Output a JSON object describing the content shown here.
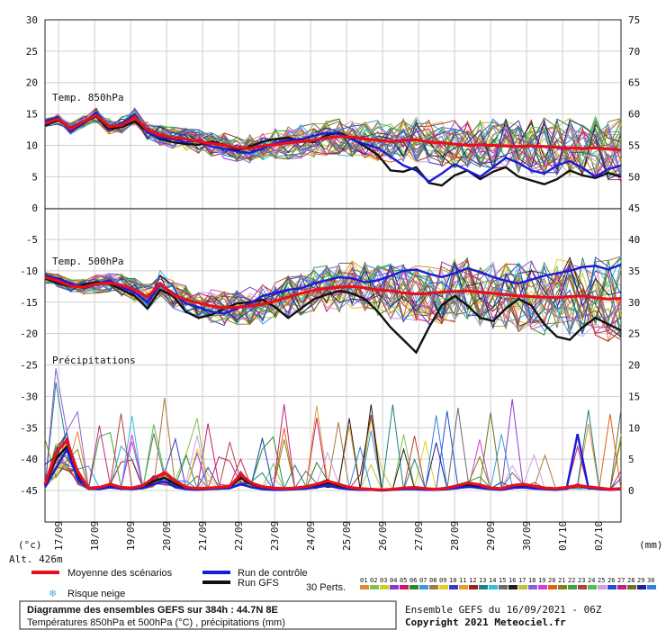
{
  "chart_data": {
    "type": "line",
    "left_axis_ticks": [
      "30",
      "25",
      "20",
      "15",
      "10",
      "5",
      "0",
      "-5",
      "-10",
      "-15",
      "-20",
      "-25",
      "-30",
      "-35",
      "-40",
      "-45"
    ],
    "right_axis_ticks": [
      "75",
      "70",
      "65",
      "60",
      "55",
      "50",
      "45",
      "40",
      "35",
      "30",
      "25",
      "20",
      "15",
      "10",
      "5",
      "0"
    ],
    "left_unit": "(°c)",
    "right_unit": "(mm)",
    "dates": [
      "17/09",
      "18/09",
      "19/09",
      "20/09",
      "21/09",
      "22/09",
      "23/09",
      "24/09",
      "25/09",
      "26/09",
      "27/09",
      "28/09",
      "29/09",
      "30/09",
      "01/10",
      "02/10"
    ],
    "ylim_left": [
      -45,
      30
    ],
    "ylim_right": [
      0,
      75
    ],
    "panels": {
      "t850": "Temp. 850hPa",
      "t500": "Temp. 500hPa",
      "precip": "Précipitations"
    },
    "series": [
      {
        "name": "Moyenne des scénarios",
        "color": "#e8101a",
        "t850": [
          13.5,
          14.2,
          12.6,
          13.8,
          14.8,
          13.0,
          13.2,
          14.5,
          12.4,
          11.6,
          11.2,
          11.0,
          10.6,
          10.3,
          10.0,
          9.6,
          9.5,
          9.9,
          10.1,
          10.4,
          10.6,
          10.8,
          11.2,
          11.4,
          11.3,
          11.0,
          10.8,
          10.6,
          10.8,
          10.9,
          10.5,
          10.4,
          10.2,
          10.0,
          10.1,
          10.0,
          9.9,
          9.8,
          9.9,
          9.8,
          9.7,
          9.6,
          9.5,
          9.6,
          9.4,
          9.3
        ],
        "t500": [
          -11.0,
          -11.6,
          -12.4,
          -12.6,
          -12.1,
          -11.9,
          -12.3,
          -13.0,
          -14.2,
          -12.0,
          -13.8,
          -14.6,
          -15.1,
          -15.6,
          -15.9,
          -15.8,
          -15.6,
          -15.3,
          -14.8,
          -14.2,
          -13.6,
          -13.1,
          -12.8,
          -12.6,
          -12.5,
          -12.7,
          -13.0,
          -13.2,
          -13.5,
          -13.7,
          -13.6,
          -13.4,
          -13.3,
          -13.2,
          -13.4,
          -13.6,
          -13.8,
          -14.0,
          -14.1,
          -14.2,
          -14.3,
          -14.1,
          -14.0,
          -14.3,
          -14.5,
          -14.4
        ],
        "precip": [
          1.0,
          6.0,
          8.0,
          3.0,
          0.4,
          0.5,
          1.0,
          0.5,
          0.4,
          0.8,
          2.0,
          2.8,
          1.5,
          0.5,
          0.3,
          0.4,
          0.5,
          0.7,
          2.5,
          1.2,
          0.6,
          0.4,
          0.3,
          0.4,
          0.6,
          1.0,
          1.5,
          1.0,
          0.5,
          0.3,
          0.2,
          0.1,
          0.2,
          0.4,
          0.5,
          0.3,
          0.2,
          0.4,
          0.8,
          1.2,
          0.9,
          0.4,
          0.3,
          0.8,
          1.0,
          0.7,
          0.4,
          0.3,
          0.5,
          0.8,
          0.6,
          0.4,
          0.2,
          0.3
        ]
      },
      {
        "name": "Run de contrôle",
        "color": "#1a1adc",
        "t850": [
          13.8,
          14.5,
          12.2,
          13.5,
          15.2,
          12.8,
          13.5,
          14.9,
          12.0,
          11.2,
          11.0,
          10.5,
          10.8,
          9.8,
          9.5,
          9.0,
          8.8,
          9.5,
          10.3,
          10.8,
          11.0,
          11.5,
          12.0,
          11.8,
          10.9,
          10.2,
          9.6,
          8.2,
          6.8,
          6.0,
          4.2,
          5.5,
          7.0,
          6.0,
          5.0,
          6.5,
          8.0,
          7.2,
          6.0,
          5.5,
          6.8,
          7.5,
          6.4,
          5.0,
          6.2,
          6.8
        ],
        "t500": [
          -10.8,
          -11.2,
          -12.0,
          -12.8,
          -12.2,
          -11.5,
          -12.6,
          -13.5,
          -15.0,
          -12.2,
          -13.5,
          -15.2,
          -15.8,
          -16.5,
          -16.8,
          -16.0,
          -15.2,
          -14.0,
          -13.5,
          -13.0,
          -12.8,
          -12.0,
          -11.5,
          -11.0,
          -11.2,
          -11.8,
          -11.5,
          -10.8,
          -10.0,
          -9.8,
          -10.5,
          -11.0,
          -10.4,
          -9.6,
          -10.2,
          -11.0,
          -11.6,
          -12.0,
          -11.4,
          -10.8,
          -10.4,
          -10.0,
          -9.4,
          -9.2,
          -9.8,
          -9.0
        ],
        "precip": [
          0.5,
          3.5,
          6.5,
          2.0,
          0.3,
          0.2,
          0.5,
          0.3,
          0.2,
          0.4,
          1.0,
          1.5,
          0.5,
          0.2,
          0.1,
          0.2,
          0.3,
          0.4,
          1.0,
          0.5,
          0.2,
          0.1,
          0.1,
          0.2,
          0.3,
          0.5,
          0.8,
          0.4,
          0.2,
          0.1,
          0.1,
          0.0,
          0.1,
          0.2,
          0.2,
          0.1,
          0.1,
          0.2,
          0.4,
          0.6,
          0.4,
          0.2,
          0.1,
          0.4,
          0.5,
          0.3,
          0.2,
          0.1,
          0.3,
          9.0,
          0.4,
          0.2,
          0.1,
          0.2
        ]
      },
      {
        "name": "Run GFS",
        "color": "#111111",
        "t850": [
          13.2,
          14.0,
          12.8,
          13.9,
          14.6,
          12.6,
          12.9,
          13.8,
          12.2,
          11.0,
          10.5,
          10.2,
          10.1,
          10.6,
          10.1,
          9.2,
          9.8,
          10.6,
          11.0,
          11.2,
          10.8,
          10.5,
          11.6,
          12.0,
          11.1,
          9.8,
          8.5,
          6.0,
          5.8,
          6.5,
          4.0,
          3.6,
          5.2,
          6.0,
          4.6,
          5.8,
          6.5,
          5.0,
          4.4,
          3.8,
          4.6,
          6.0,
          5.2,
          4.8,
          5.6,
          5.0
        ],
        "t500": [
          -11.2,
          -12.0,
          -12.5,
          -12.2,
          -11.8,
          -12.0,
          -13.0,
          -14.0,
          -16.0,
          -13.0,
          -14.0,
          -16.5,
          -17.5,
          -17.0,
          -16.0,
          -15.2,
          -15.0,
          -14.6,
          -15.8,
          -17.5,
          -16.0,
          -14.5,
          -13.8,
          -13.2,
          -13.6,
          -14.5,
          -16.5,
          -19.0,
          -21.0,
          -23.0,
          -19.0,
          -15.5,
          -14.0,
          -15.5,
          -17.5,
          -18.0,
          -16.0,
          -14.5,
          -15.5,
          -18.5,
          -20.5,
          -21.0,
          -19.0,
          -17.5,
          -18.5,
          -19.5
        ],
        "precip": [
          0.8,
          5.0,
          7.0,
          2.5,
          0.3,
          0.4,
          0.8,
          0.4,
          0.3,
          0.6,
          1.5,
          2.0,
          1.0,
          0.4,
          0.2,
          0.3,
          0.4,
          0.6,
          2.0,
          1.0,
          0.5,
          0.3,
          0.2,
          0.3,
          0.5,
          0.8,
          1.2,
          0.8,
          0.4,
          0.2,
          0.2,
          0.1,
          0.2,
          0.3,
          0.4,
          0.3,
          0.2,
          0.3,
          0.6,
          0.9,
          0.7,
          0.3,
          0.2,
          0.6,
          0.8,
          0.6,
          0.3,
          0.2,
          0.4,
          0.7,
          0.5,
          0.3,
          0.2,
          0.3
        ]
      }
    ],
    "members_label": "30 Perts.",
    "member_numbers": [
      "01",
      "02",
      "03",
      "04",
      "05",
      "06",
      "07",
      "08",
      "09",
      "10",
      "11",
      "12",
      "13",
      "14",
      "15",
      "16",
      "17",
      "18",
      "19",
      "20",
      "21",
      "22",
      "23",
      "24",
      "25",
      "26",
      "27",
      "28",
      "29",
      "30"
    ],
    "member_colors": [
      "#e2863a",
      "#7fc24c",
      "#cfcf20",
      "#8a3ac8",
      "#c81a6a",
      "#2a8a2a",
      "#3a9ae0",
      "#a87840",
      "#e0d020",
      "#3a3ac8",
      "#e0a030",
      "#a02020",
      "#208080",
      "#30c0e0",
      "#6a6a6a",
      "#202020",
      "#c0c040",
      "#8a60d8",
      "#d040d0",
      "#e06010",
      "#808020",
      "#40a040",
      "#b04040",
      "#50c050",
      "#d0a0e0",
      "#2050d0",
      "#c02080",
      "#707020",
      "#202090",
      "#3080e0"
    ]
  },
  "labels": {
    "altitude": "Alt. 426m",
    "snow_risk": "Risque neige",
    "title_line1": "Diagramme des ensembles GEFS sur 384h : 44.7N 8E",
    "title_line2": "Températures 850hPa et 500hPa (°C) , précipitations (mm)",
    "ensemble_run": "Ensemble GEFS du 16/09/2021 - 06Z",
    "copyright": "Copyright 2021 Meteociel.fr"
  },
  "colors": {
    "mean": "#e8101a",
    "control": "#1a1adc",
    "gfs": "#111111",
    "snow": "#4aa8e8"
  },
  "icons": {
    "snow": "snowflake-icon"
  }
}
